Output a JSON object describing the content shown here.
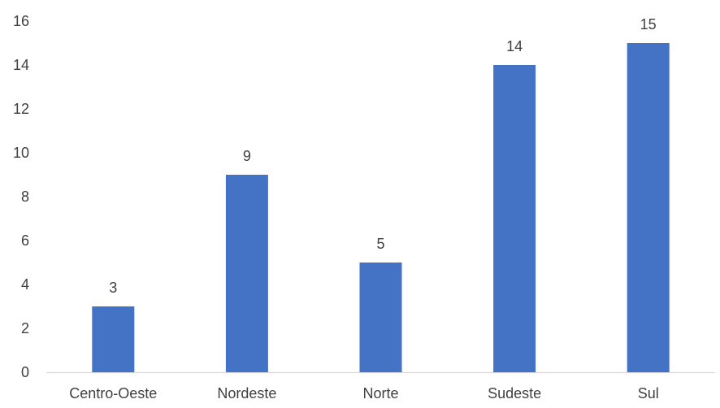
{
  "chart_data": {
    "type": "bar",
    "title": "",
    "xlabel": "",
    "ylabel": "",
    "categories": [
      "Centro-Oeste",
      "Nordeste",
      "Norte",
      "Sudeste",
      "Sul"
    ],
    "values": [
      3,
      9,
      5,
      14,
      15
    ],
    "ylim": [
      0,
      16
    ],
    "yticks": [
      "0",
      "2",
      "4",
      "6",
      "8",
      "10",
      "12",
      "14",
      "16"
    ],
    "data_labels": [
      "3",
      "9",
      "5",
      "14",
      "15"
    ],
    "grid": false,
    "legend": "none",
    "bar_color": "#4472C4",
    "axis_color": "#D9D9D9",
    "text_color": "#404040"
  }
}
